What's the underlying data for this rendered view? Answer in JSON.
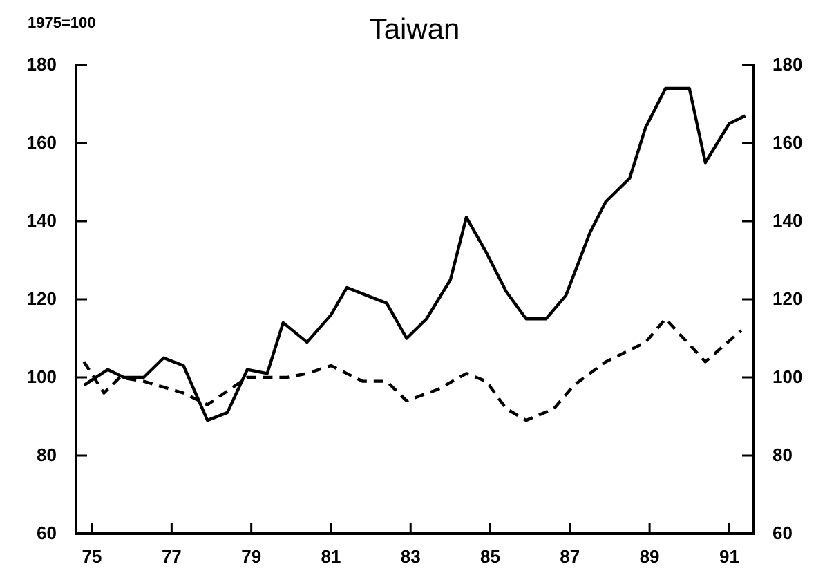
{
  "chart_data": {
    "type": "line",
    "title": "Taiwan",
    "annotations": [
      "1975=100"
    ],
    "xlim": [
      74.6,
      91.6
    ],
    "xticks": [
      {
        "value": 75,
        "label": "75"
      },
      {
        "value": 77,
        "label": "77"
      },
      {
        "value": 79,
        "label": "79"
      },
      {
        "value": 81,
        "label": "81"
      },
      {
        "value": 83,
        "label": "83"
      },
      {
        "value": 85,
        "label": "85"
      },
      {
        "value": 87,
        "label": "87"
      },
      {
        "value": 89,
        "label": "89"
      },
      {
        "value": 91,
        "label": "91"
      }
    ],
    "ylim": [
      60,
      180
    ],
    "yticks": [
      60,
      80,
      100,
      120,
      140,
      160,
      180
    ],
    "y2lim": [
      60,
      180
    ],
    "y2ticks": [
      60,
      80,
      100,
      120,
      140,
      160,
      180
    ],
    "grid": false,
    "marker": "none",
    "series": [
      {
        "color": "#000000",
        "line_style": "solid",
        "x": [
          74.8,
          75.4,
          75.8,
          76.3,
          76.8,
          77.3,
          77.9,
          78.4,
          78.9,
          79.4,
          79.8,
          80.4,
          81.0,
          81.4,
          81.9,
          82.4,
          82.9,
          83.4,
          84.0,
          84.4,
          84.9,
          85.4,
          85.9,
          86.4,
          86.9,
          87.5,
          87.9,
          88.5,
          88.9,
          89.4,
          90.0,
          90.4,
          91.0,
          91.4
        ],
        "values": [
          98,
          102,
          100,
          100,
          105,
          103,
          89,
          91,
          102,
          101,
          114,
          109,
          116,
          123,
          121,
          119,
          110,
          115,
          125,
          141,
          132,
          122,
          115,
          115,
          121,
          137,
          145,
          151,
          164,
          174,
          174,
          155,
          165,
          167
        ]
      },
      {
        "color": "#000000",
        "line_style": "dashed",
        "x": [
          74.8,
          75.3,
          75.7,
          76.3,
          77.3,
          77.9,
          78.9,
          79.9,
          80.4,
          81.0,
          81.8,
          82.4,
          82.9,
          83.7,
          84.4,
          84.9,
          85.4,
          85.9,
          86.6,
          87.1,
          87.9,
          88.5,
          88.9,
          89.4,
          90.4,
          91.3
        ],
        "values": [
          104,
          96,
          100,
          99,
          96,
          93,
          100,
          100,
          101,
          103,
          99,
          99,
          94,
          97,
          101,
          99,
          92,
          89,
          92,
          98,
          104,
          107,
          109,
          115,
          104,
          112
        ]
      }
    ]
  }
}
